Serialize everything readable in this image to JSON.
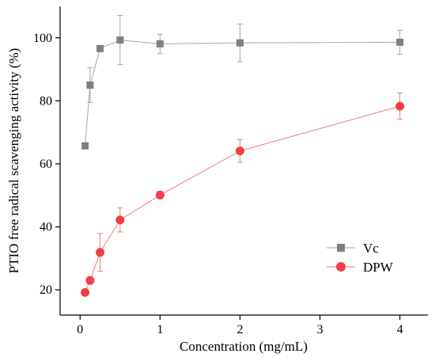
{
  "chart_data": {
    "type": "line",
    "xlabel": "Concentration (mg/mL)",
    "ylabel": "PTIO free radical scavenging activity (%)",
    "xlim": [
      -0.25,
      4.35
    ],
    "ylim": [
      12,
      110
    ],
    "xticks": [
      0,
      1,
      2,
      3,
      4
    ],
    "xtick_labels": [
      "0",
      "1",
      "2",
      "3",
      "4"
    ],
    "yticks": [
      20,
      40,
      60,
      80,
      100
    ],
    "ytick_labels": [
      "20",
      "40",
      "60",
      "80",
      "100"
    ],
    "grid": false,
    "legend_placement": "bottom-right",
    "series": [
      {
        "name": "Vc",
        "marker": "square",
        "color": "#7f7f7f",
        "line_color": "#a6a6a6",
        "x": [
          0.0625,
          0.125,
          0.25,
          0.5,
          1,
          2,
          4
        ],
        "y": [
          65.7,
          85.0,
          96.6,
          99.3,
          98.1,
          98.4,
          98.6
        ],
        "err": [
          0.5,
          5.5,
          0.8,
          7.8,
          3.0,
          6.0,
          3.8
        ]
      },
      {
        "name": "DPW",
        "marker": "circle",
        "color": "#f04045",
        "line_color": "#f47a7e",
        "x": [
          0.0625,
          0.125,
          0.25,
          0.5,
          1,
          2,
          4
        ],
        "y": [
          19.2,
          23.0,
          31.9,
          42.2,
          50.1,
          64.1,
          78.3
        ],
        "err": [
          0.3,
          1.2,
          6.0,
          3.8,
          1.2,
          3.6,
          4.2
        ]
      }
    ]
  }
}
